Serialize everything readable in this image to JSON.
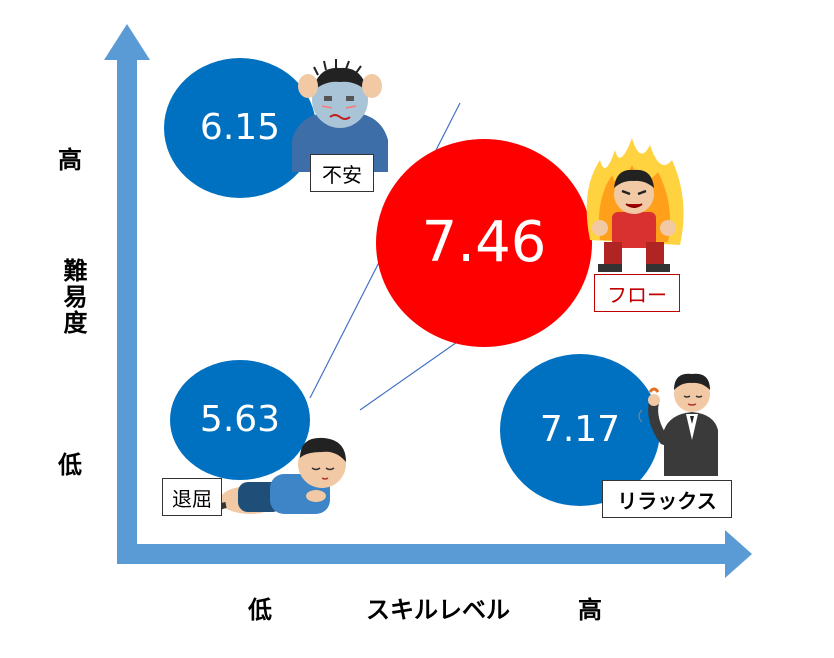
{
  "axes": {
    "y_high": "高",
    "y_title": "難易度",
    "y_low": "低",
    "x_low": "低",
    "x_title": "スキルレベル",
    "x_high": "高",
    "color": "#5b9bd5"
  },
  "states": [
    {
      "id": "anxiety",
      "value": "6.15",
      "label": "不安",
      "color": "#0070c0",
      "label_color": "#000000",
      "icon": "worried-person-icon"
    },
    {
      "id": "flow",
      "value": "7.46",
      "label": "フロー",
      "color": "#ff0000",
      "label_color": "#c00000",
      "icon": "fired-up-person-icon"
    },
    {
      "id": "boredom",
      "value": "5.63",
      "label": "退屈",
      "color": "#0070c0",
      "label_color": "#000000",
      "icon": "lying-down-person-icon"
    },
    {
      "id": "relaxation",
      "value": "7.17",
      "label": "リラックス",
      "color": "#0070c0",
      "label_color": "#000000",
      "icon": "relaxed-businessman-icon"
    }
  ]
}
